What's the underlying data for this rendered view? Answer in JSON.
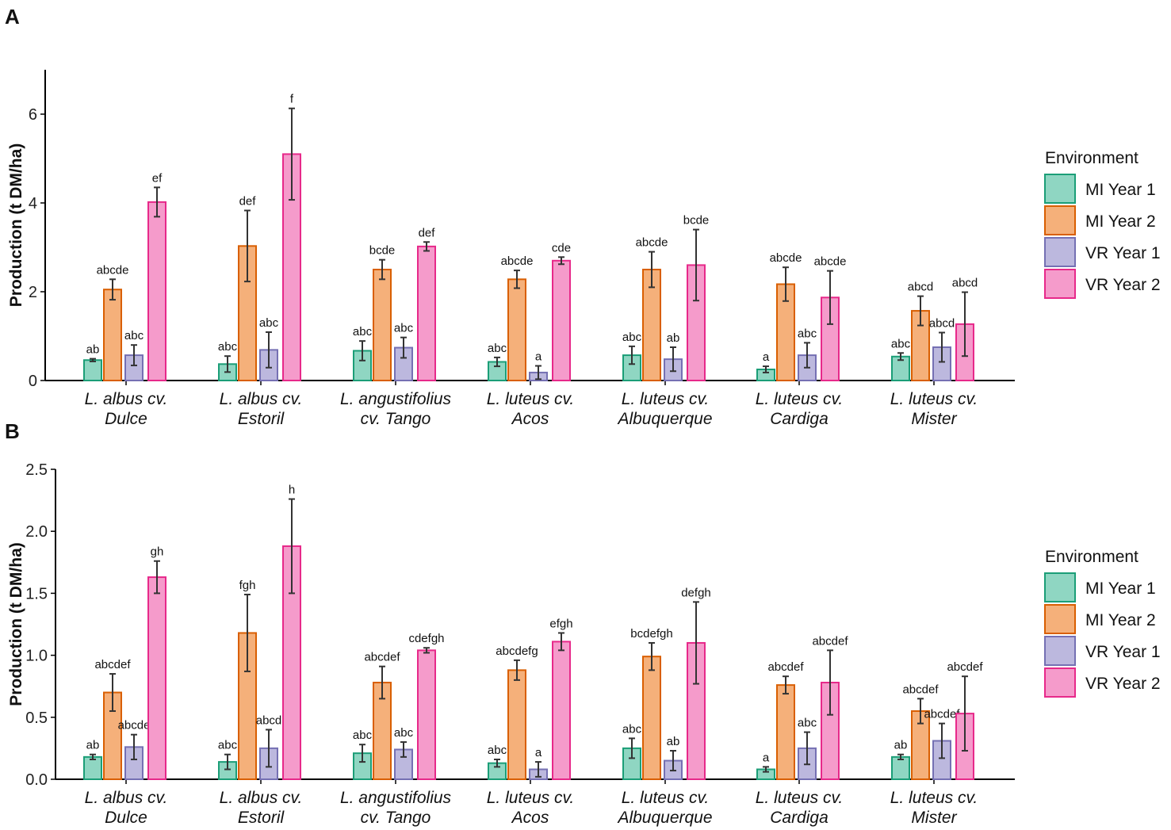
{
  "chart_data": [
    {
      "type": "bar",
      "panel": "A",
      "ylabel": "Production (t DM/ha)",
      "xlabel": "",
      "ylim": [
        0,
        7
      ],
      "yticks": [
        0,
        2,
        4,
        6
      ],
      "ytick_labels": [
        "0",
        "2",
        "4",
        "6"
      ],
      "categories": [
        [
          "L. albus cv.",
          "Dulce"
        ],
        [
          "L. albus cv.",
          "Estoril"
        ],
        [
          "L. angustifolius",
          "cv. Tango"
        ],
        [
          "L. luteus cv.",
          "Acos"
        ],
        [
          "L. luteus cv.",
          "Albuquerque"
        ],
        [
          "L. luteus cv.",
          "Cardiga"
        ],
        [
          "L. luteus cv.",
          "Mister"
        ]
      ],
      "series": [
        {
          "name": "MI Year 1",
          "values": [
            0.46,
            0.37,
            0.67,
            0.42,
            0.57,
            0.25,
            0.54
          ],
          "errors": [
            0.03,
            0.18,
            0.22,
            0.1,
            0.2,
            0.07,
            0.08
          ],
          "letters": [
            "ab",
            "abc",
            "abc",
            "abc",
            "abc",
            "a",
            "abc"
          ]
        },
        {
          "name": "MI Year 2",
          "values": [
            2.05,
            3.03,
            2.5,
            2.28,
            2.5,
            2.17,
            1.57
          ],
          "errors": [
            0.23,
            0.8,
            0.22,
            0.2,
            0.4,
            0.38,
            0.33
          ],
          "letters": [
            "abcde",
            "def",
            "bcde",
            "abcde",
            "abcde",
            "abcde",
            "abcd"
          ]
        },
        {
          "name": "VR Year 1",
          "values": [
            0.57,
            0.69,
            0.74,
            0.18,
            0.48,
            0.57,
            0.75
          ],
          "errors": [
            0.23,
            0.4,
            0.23,
            0.15,
            0.27,
            0.28,
            0.33
          ],
          "letters": [
            "abc",
            "abc",
            "abc",
            "a",
            "ab",
            "abc",
            "abcd"
          ]
        },
        {
          "name": "VR Year 2",
          "values": [
            4.02,
            5.1,
            3.02,
            2.7,
            2.6,
            1.87,
            1.27
          ],
          "errors": [
            0.33,
            1.03,
            0.1,
            0.08,
            0.8,
            0.6,
            0.72
          ],
          "letters": [
            "ef",
            "f",
            "def",
            "cde",
            "bcde",
            "abcde",
            "abcd"
          ]
        }
      ],
      "legend_title": "Environment",
      "legend_position": "right"
    },
    {
      "type": "bar",
      "panel": "B",
      "ylabel": "Production (t DM/ha)",
      "xlabel": "",
      "ylim": [
        0,
        2.5
      ],
      "yticks": [
        0,
        0.5,
        1.0,
        1.5,
        2.0,
        2.5
      ],
      "ytick_labels": [
        "0.0",
        "0.5",
        "1.0",
        "1.5",
        "2.0",
        "2.5"
      ],
      "categories": [
        [
          "L. albus cv.",
          "Dulce"
        ],
        [
          "L. albus cv.",
          "Estoril"
        ],
        [
          "L. angustifolius",
          "cv. Tango"
        ],
        [
          "L. luteus cv.",
          "Acos"
        ],
        [
          "L. luteus cv.",
          "Albuquerque"
        ],
        [
          "L. luteus cv.",
          "Cardiga"
        ],
        [
          "L. luteus cv.",
          "Mister"
        ]
      ],
      "series": [
        {
          "name": "MI Year 1",
          "values": [
            0.18,
            0.14,
            0.21,
            0.13,
            0.25,
            0.08,
            0.18
          ],
          "errors": [
            0.02,
            0.06,
            0.07,
            0.03,
            0.08,
            0.02,
            0.02
          ],
          "letters": [
            "ab",
            "abc",
            "abc",
            "abc",
            "abc",
            "a",
            "ab"
          ]
        },
        {
          "name": "MI Year 2",
          "values": [
            0.7,
            1.18,
            0.78,
            0.88,
            0.99,
            0.76,
            0.55
          ],
          "errors": [
            0.15,
            0.31,
            0.13,
            0.08,
            0.11,
            0.07,
            0.1
          ],
          "letters": [
            "abcdef",
            "fgh",
            "abcdef",
            "abcdefg",
            "bcdefgh",
            "abcdef",
            "abcdef"
          ]
        },
        {
          "name": "VR Year 1",
          "values": [
            0.26,
            0.25,
            0.24,
            0.08,
            0.15,
            0.25,
            0.31
          ],
          "errors": [
            0.1,
            0.15,
            0.06,
            0.06,
            0.08,
            0.13,
            0.14
          ],
          "letters": [
            "abcde",
            "abcd",
            "abc",
            "a",
            "ab",
            "abc",
            "abcdef"
          ]
        },
        {
          "name": "VR Year 2",
          "values": [
            1.63,
            1.88,
            1.04,
            1.11,
            1.1,
            0.78,
            0.53
          ],
          "errors": [
            0.13,
            0.38,
            0.02,
            0.07,
            0.33,
            0.26,
            0.3
          ],
          "letters": [
            "gh",
            "h",
            "cdefgh",
            "efgh",
            "defgh",
            "abcdef",
            "abcdef"
          ]
        }
      ],
      "legend_title": "Environment",
      "legend_position": "right"
    }
  ],
  "colors": {
    "MI Year 1": {
      "fill": "#8fd6c2",
      "stroke": "#1b9e77"
    },
    "MI Year 2": {
      "fill": "#f5b07a",
      "stroke": "#d95f02"
    },
    "VR Year 1": {
      "fill": "#bcb8de",
      "stroke": "#7570b3"
    },
    "VR Year 2": {
      "fill": "#f59bcb",
      "stroke": "#e7298a"
    }
  }
}
